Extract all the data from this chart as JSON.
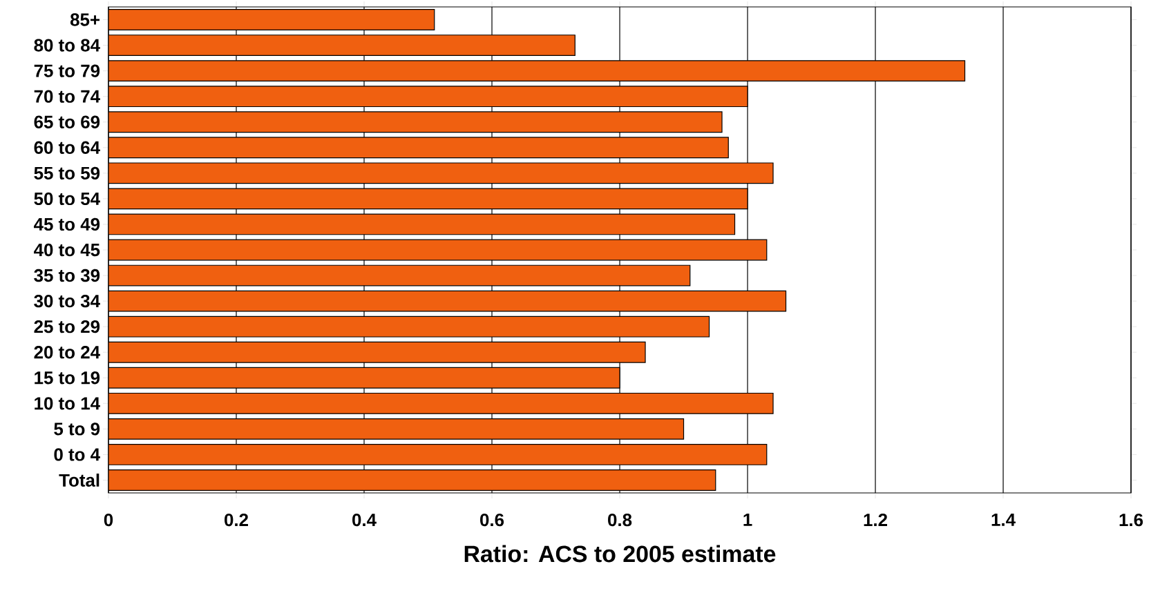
{
  "chart_data": {
    "type": "bar",
    "orientation": "horizontal",
    "xlabel": "Ratio: ACS to 2005 estimate",
    "categories": [
      "85+",
      "80 to 84",
      "75 to 79",
      "70 to 74",
      "65 to 69",
      "60 to 64",
      "55 to 59",
      "50 to 54",
      "45 to 49",
      "40 to 45",
      "35 to 39",
      "30 to 34",
      "25 to 29",
      "20 to 24",
      "15 to 19",
      "10 to 14",
      "5 to 9",
      "0 to 4",
      "Total"
    ],
    "values": [
      0.51,
      0.73,
      1.34,
      1.0,
      0.96,
      0.97,
      1.04,
      1.0,
      0.98,
      1.03,
      0.91,
      1.06,
      0.94,
      0.84,
      0.8,
      1.04,
      0.9,
      1.03,
      0.95
    ],
    "color": "#f06010",
    "xlim": [
      0,
      1.6
    ],
    "xticks": [
      0,
      0.2,
      0.4,
      0.6,
      0.8,
      1,
      1.2,
      1.4,
      1.6
    ],
    "grid": "x"
  }
}
